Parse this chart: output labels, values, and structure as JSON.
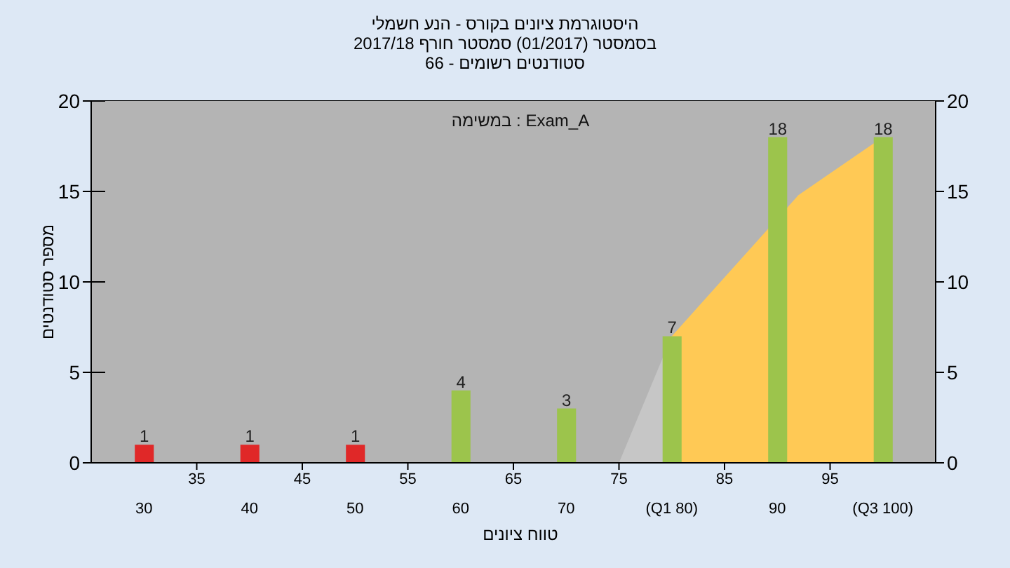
{
  "chart_data": {
    "type": "bar",
    "title": "היסטוגרמת ציונים בקורס - הנע חשמלי",
    "subtitle": "בסמסטר (01/2017) סמסטר חורף 2017/18\nסטודנטים רשומים - 66",
    "xlabel": "טווח ציונים",
    "ylabel": "מספר סטודנטים",
    "annotations": [
      "Exam_A : במשימה"
    ],
    "xlim": [
      25,
      105
    ],
    "xticks": [
      35,
      45,
      55,
      65,
      75,
      85,
      95
    ],
    "x2lim": [
      25,
      105
    ],
    "x2ticks": [
      30,
      40,
      50,
      60,
      70,
      {
        "value": 80,
        "label": "(Q1 80)"
      },
      90,
      {
        "value": 100,
        "label": "(Q3 100)"
      }
    ],
    "ylim": [
      0,
      20
    ],
    "yticks": [
      0,
      5,
      10,
      15,
      20
    ],
    "y2lim": [
      0,
      20
    ],
    "y2ticks": [
      0,
      5,
      10,
      15,
      20
    ],
    "grid": true,
    "series": [
      {
        "type": "area",
        "x": [
          75,
          80
        ],
        "values": [
          0,
          7
        ],
        "color": "#c6c6c6"
      },
      {
        "type": "area",
        "x": [
          80,
          92,
          100
        ],
        "values": [
          7,
          14.8,
          18
        ],
        "color": "#ffc955"
      },
      {
        "type": "bar",
        "x": [
          30,
          40,
          50,
          60,
          70,
          80,
          90,
          100
        ],
        "values": [
          1,
          1,
          1,
          4,
          3,
          7,
          18,
          18
        ],
        "colors": [
          "#e02828",
          "#e02828",
          "#e02828",
          "#9cc44c",
          "#9cc44c",
          "#9cc44c",
          "#9cc44c",
          "#9cc44c"
        ],
        "value_labels": [
          "1",
          "1",
          "1",
          "4",
          "3",
          "7",
          "18",
          "18"
        ]
      }
    ]
  }
}
